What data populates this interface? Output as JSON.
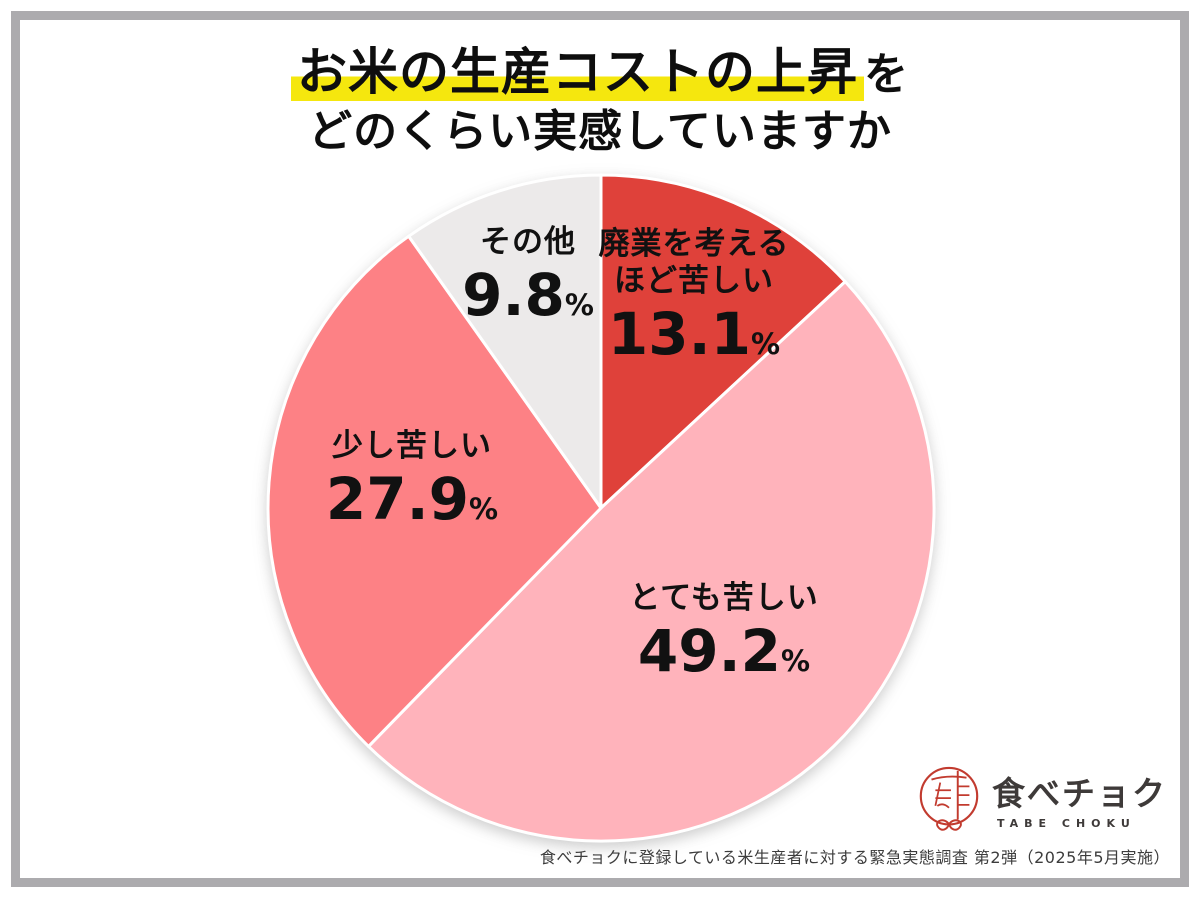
{
  "frame": {
    "border_color": "#ACABAE"
  },
  "title": {
    "line1_highlighted": "お米の生産コストの上昇",
    "line1_suffix": "を",
    "line2": "どのくらい実感していますか",
    "highlight_color": "#F5E70E"
  },
  "chart_data": {
    "type": "pie",
    "title": "お米の生産コストの上昇をどのくらい実感していますか",
    "unit": "%",
    "start_angle": "top",
    "direction": "clockwise",
    "legend_position": "none",
    "slices": [
      {
        "id": "haigyo",
        "label": "廃業を考えるほど苦しい",
        "label_lines": [
          "廃業を考える",
          "ほど苦しい"
        ],
        "value": 13.1,
        "color": "#DF413A"
      },
      {
        "id": "totemo",
        "label": "とても苦しい",
        "label_lines": [
          "とても苦しい"
        ],
        "value": 49.2,
        "color": "#FFB3BB"
      },
      {
        "id": "sukoshi",
        "label": "少し苦しい",
        "label_lines": [
          "少し苦しい"
        ],
        "value": 27.9,
        "color": "#FD8185"
      },
      {
        "id": "sonota",
        "label": "その他",
        "label_lines": [
          "その他"
        ],
        "value": 9.8,
        "color": "#ECEAEA"
      }
    ]
  },
  "logo": {
    "brand": "食べチョク",
    "romaji": "TABE CHOKU",
    "mark_color": "#C23B2F"
  },
  "footnote": "食べチョクに登録している米生産者に対する緊急実態調査 第2弾（2025年5月実施）"
}
